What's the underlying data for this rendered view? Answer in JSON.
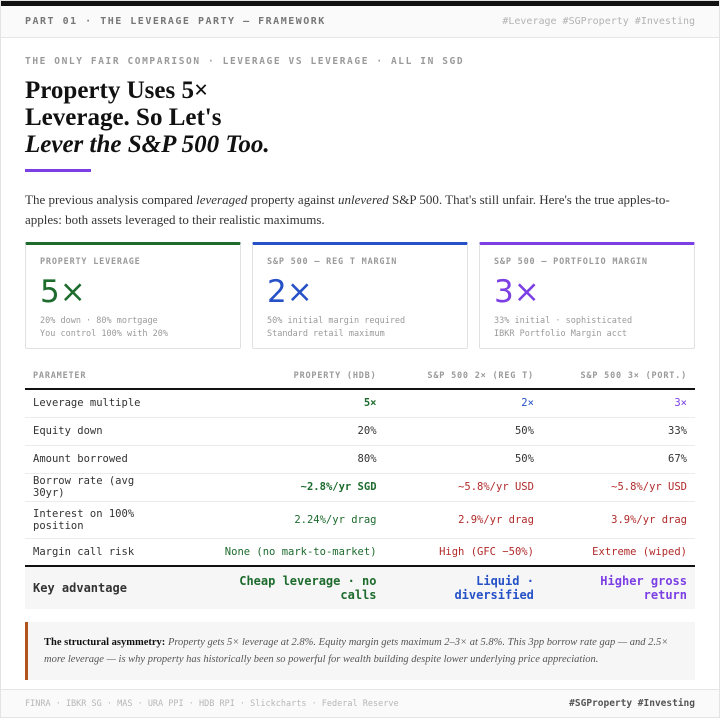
{
  "header": {
    "left": "PART 01 · THE LEVERAGE PARTY — FRAMEWORK",
    "right": "#Leverage #SGProperty #Investing"
  },
  "kicker": "THE ONLY FAIR COMPARISON · LEVERAGE VS LEVERAGE · ALL IN SGD",
  "title": {
    "line1": "Property Uses 5×",
    "line2": "Leverage. So Let's",
    "line3": "Lever the S&P 500 Too."
  },
  "intro": {
    "part1": "The previous analysis compared ",
    "em1": "leveraged",
    "part2": " property against ",
    "em2": "unlevered",
    "part3": " S&P 500. That's still unfair. Here's the true apples-to-apples: both assets leveraged to their realistic maximums."
  },
  "colors": {
    "green": "#1d6b2d",
    "blue": "#2651c7",
    "purple": "#7b3fe4",
    "red": "#b12a2a"
  },
  "cards": [
    {
      "label": "PROPERTY LEVERAGE",
      "value": "5×",
      "note1": "20% down · 80% mortgage",
      "note2": "You control 100% with 20%"
    },
    {
      "label": "S&P 500 — REG T MARGIN",
      "value": "2×",
      "note1": "50% initial margin required",
      "note2": "Standard retail maximum"
    },
    {
      "label": "S&P 500 — PORTFOLIO MARGIN",
      "value": "3×",
      "note1": "33% initial · sophisticated",
      "note2": "IBKR Portfolio Margin acct"
    }
  ],
  "table": {
    "headers": [
      "PARAMETER",
      "PROPERTY (HDB)",
      "S&P 500 2× (REG T)",
      "S&P 500 3× (PORT.)"
    ],
    "rows": [
      [
        "Leverage multiple",
        "5×",
        "2×",
        "3×"
      ],
      [
        "Equity down",
        "20%",
        "50%",
        "33%"
      ],
      [
        "Amount borrowed",
        "80%",
        "50%",
        "67%"
      ],
      [
        "Borrow rate (avg 30yr)",
        "~2.8%/yr SGD",
        "~5.8%/yr USD",
        "~5.8%/yr USD"
      ],
      [
        "Interest on 100% position",
        "2.24%/yr drag",
        "2.9%/yr drag",
        "3.9%/yr drag"
      ],
      [
        "Margin call risk",
        "None (no mark-to-market)",
        "High (GFC −50%)",
        "Extreme (wiped)"
      ],
      [
        "Key advantage",
        "Cheap leverage · no calls",
        "Liquid · diversified",
        "Higher gross return"
      ]
    ]
  },
  "callout": {
    "bold": "The structural asymmetry:",
    "text": " Property gets 5× leverage at 2.8%. Equity margin gets maximum 2–3× at 5.8%. This 3pp borrow rate gap — and 2.5× more leverage — is why property has historically been so powerful for wealth building despite lower underlying price appreciation."
  },
  "footer": {
    "sources": "FINRA · IBKR SG · MAS · URA PPI · HDB RPI · Slickcharts · Federal Reserve",
    "tag": "#SGProperty #Investing"
  }
}
